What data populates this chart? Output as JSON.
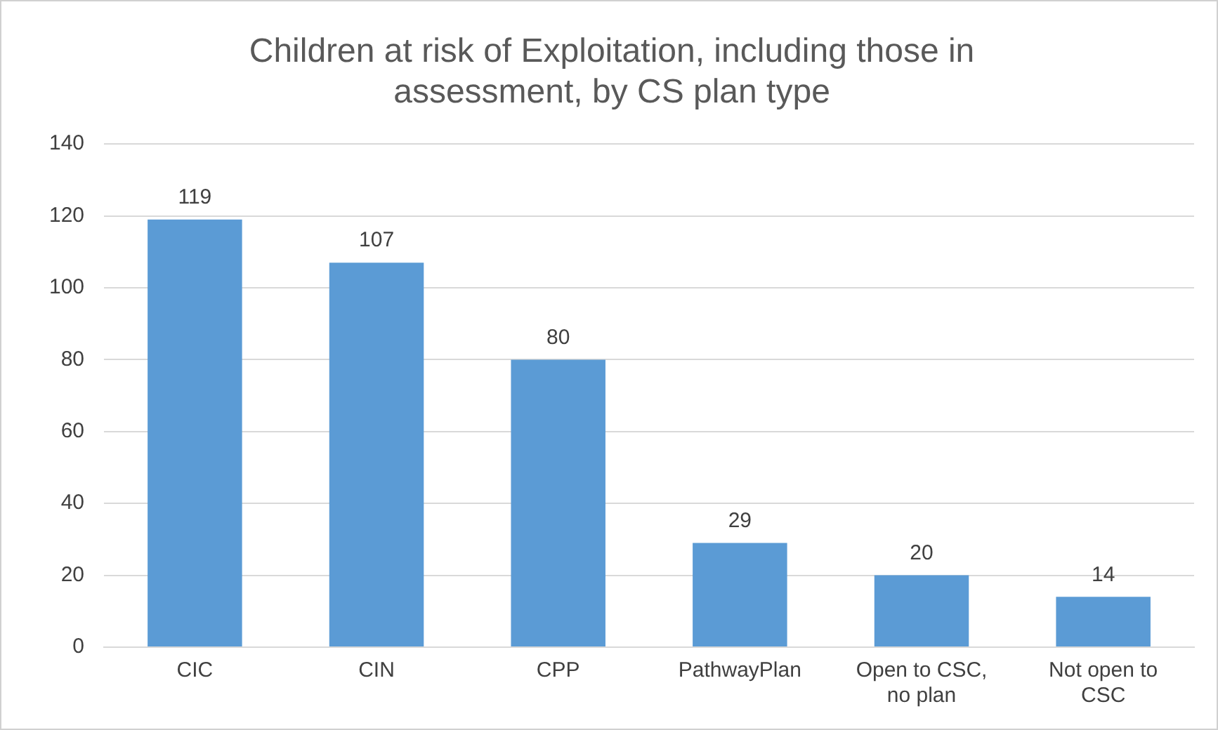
{
  "chart_data": {
    "type": "bar",
    "title": "Children at risk of Exploitation, including those in assessment, by CS plan type",
    "categories": [
      "CIC",
      "CIN",
      "CPP",
      "PathwayPlan",
      "Open to CSC, no plan",
      "Not open to CSC"
    ],
    "values": [
      119,
      107,
      80,
      29,
      20,
      14
    ],
    "color": "#5b9bd5",
    "ylim": [
      0,
      140
    ],
    "yticks": [
      0,
      20,
      40,
      60,
      80,
      100,
      120,
      140
    ],
    "grid": "y",
    "data_labels": true
  }
}
